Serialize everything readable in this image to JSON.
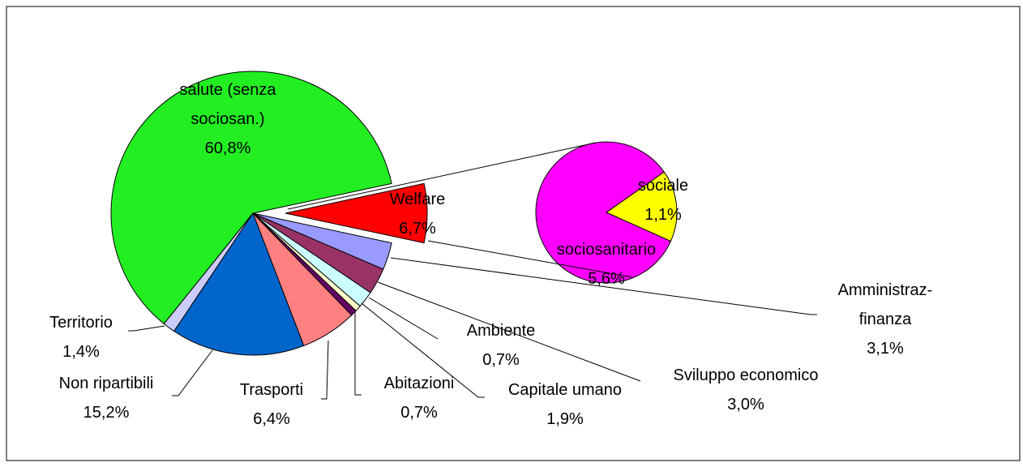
{
  "chart_data": {
    "type": "pie-of-pie",
    "categories": [
      "Welfare",
      "Amministraz-finanza",
      "Sviluppo economico",
      "Capitale umano",
      "Ambiente",
      "Abitazioni",
      "Trasporti",
      "Non ripartibili",
      "Territorio",
      "salute (senza sociosan.)"
    ],
    "values": [
      6.7,
      3.1,
      3.0,
      1.9,
      0.7,
      0.7,
      6.4,
      15.2,
      1.4,
      60.8
    ],
    "value_labels": [
      "6,7%",
      "3,1%",
      "3,0%",
      "1,9%",
      "0,7%",
      "0,7%",
      "6,4%",
      "15,2%",
      "1,4%",
      "60,8%"
    ],
    "colors": [
      "#ff0000",
      "#9999ff",
      "#993366",
      "#ccffff",
      "#ffffcc",
      "#660066",
      "#ff8080",
      "#0066cc",
      "#ccccff",
      "#22ee22"
    ],
    "secondary": {
      "categories": [
        "sociale",
        "sociosanitario"
      ],
      "values": [
        1.1,
        5.6
      ],
      "value_labels": [
        "1,1%",
        "5,6%"
      ],
      "colors": [
        "#ffff00",
        "#ff00ff"
      ]
    }
  }
}
